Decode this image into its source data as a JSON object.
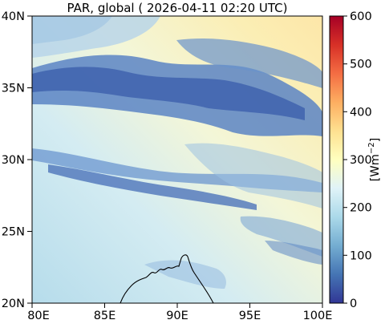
{
  "map": {
    "title": "PAR, global ( 2026-04-11 02:20 UTC)",
    "variable": "PAR",
    "region": {
      "lon_range": [
        80,
        100
      ],
      "lat_range": [
        20,
        40
      ]
    },
    "lon_ticks": [
      "80E",
      "85E",
      "90E",
      "95E",
      "100E"
    ],
    "lat_ticks": [
      "40N",
      "35N",
      "30N",
      "25N",
      "20N"
    ],
    "colorbar": {
      "label": "[Wm$^{-2}$]",
      "label_text": "[Wm",
      "label_exp": "−2",
      "label_close": "]",
      "range": [
        0,
        600
      ],
      "ticks": [
        "600",
        "500",
        "400",
        "300",
        "200",
        "100",
        "0"
      ],
      "colormap": [
        "#313695",
        "#4575b4",
        "#74add1",
        "#abd9e9",
        "#e0f3f8",
        "#ffffbf",
        "#fee090",
        "#fdae61",
        "#f46d43",
        "#d73027",
        "#a50026"
      ]
    },
    "features": [
      "coastline",
      "cloud bands"
    ]
  }
}
